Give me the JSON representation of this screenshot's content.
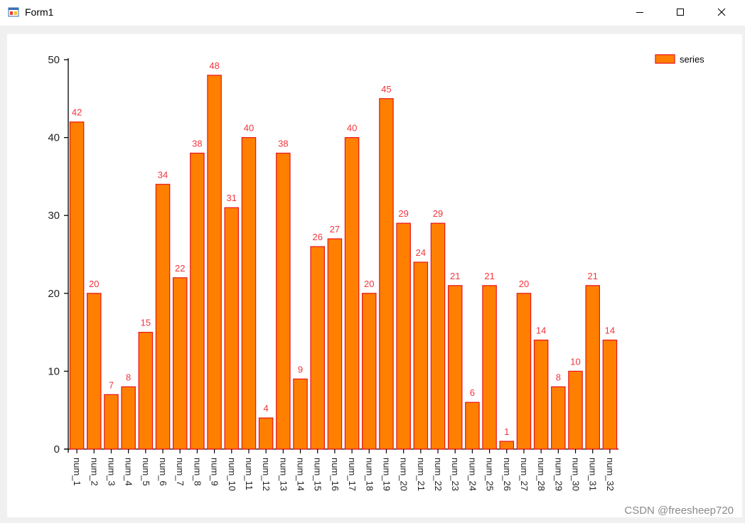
{
  "window": {
    "title": "Form1",
    "icon": "winforms-app-icon",
    "controls": [
      "minimize-icon",
      "maximize-icon",
      "close-icon"
    ]
  },
  "colors": {
    "bar_fill": "#ff7f00",
    "bar_stroke": "#e8141e",
    "label": "#f2353d",
    "axis": "#000000"
  },
  "watermark": "CSDN @freesheep720",
  "chart_data": {
    "type": "bar",
    "categories": [
      "num_1",
      "num_2",
      "num_3",
      "num_4",
      "num_5",
      "num_6",
      "num_7",
      "num_8",
      "num_9",
      "num_10",
      "num_11",
      "num_12",
      "num_13",
      "num_14",
      "num_15",
      "num_16",
      "num_17",
      "num_18",
      "num_19",
      "num_20",
      "num_21",
      "num_22",
      "num_23",
      "num_24",
      "num_25",
      "num_26",
      "num_27",
      "num_28",
      "num_29",
      "num_30",
      "num_31",
      "num_32"
    ],
    "series": [
      {
        "name": "series",
        "values": [
          42,
          20,
          7,
          8,
          15,
          34,
          22,
          38,
          48,
          31,
          40,
          4,
          38,
          9,
          26,
          27,
          40,
          20,
          45,
          29,
          24,
          29,
          21,
          6,
          21,
          1,
          20,
          14,
          8,
          10,
          21,
          14
        ]
      }
    ],
    "yticks": [
      "0",
      "10",
      "20",
      "30",
      "40",
      "50"
    ],
    "ylim": [
      0,
      50
    ],
    "grid": false,
    "data_labels": true,
    "legend": "top-right"
  }
}
